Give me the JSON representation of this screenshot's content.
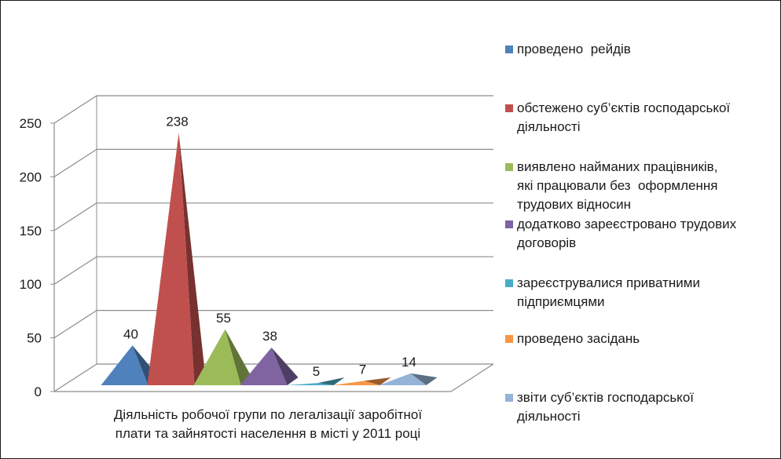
{
  "chart_data": {
    "type": "bar",
    "style": "3d-pyramid",
    "xlabel": "Діяльність робочої групи по легалізації заробітної плати та зайнятості населення в місті у 2011 році",
    "ylim": [
      0,
      250
    ],
    "y_ticks": [
      "0",
      "50",
      "100",
      "150",
      "200",
      "250"
    ],
    "grid": true,
    "legend_position": "right",
    "series": [
      {
        "name": "проведено  рейдів",
        "value": 40,
        "label": "40",
        "color": "#4f81bd"
      },
      {
        "name": "обстежено суб’єктів господарської діяльності",
        "value": 238,
        "label": "238",
        "color": "#c0504d"
      },
      {
        "name": "виявлено найманих працівників, які працювали без  оформлення трудових відносин",
        "value": 55,
        "label": "55",
        "color": "#9bbb59"
      },
      {
        "name": "додатково зареєстровано трудових договорів",
        "value": 38,
        "label": "38",
        "color": "#8064a2"
      },
      {
        "name": "зареєструвалися приватними підприємцями",
        "value": 5,
        "label": "5",
        "color": "#4bacc6"
      },
      {
        "name": "проведено засідань",
        "value": 7,
        "label": "7",
        "color": "#f79646"
      },
      {
        "name": "звіти суб’єктів господарської діяльності",
        "value": 14,
        "label": "14",
        "color": "#95b3d7"
      }
    ]
  },
  "legend": {
    "items": [
      [
        "проведено  рейдів"
      ],
      [
        "обстежено суб’єктів господарської",
        "діяльності"
      ],
      [
        "виявлено найманих працівників,",
        "які працювали без  оформлення",
        "трудових відносин"
      ],
      [
        "додатково зареєстровано трудових",
        "договорів"
      ],
      [
        "зареєструвалися приватними",
        "підприємцями"
      ],
      [
        "проведено засідань"
      ],
      [
        "звіти суб’єктів господарської",
        "діяльності"
      ]
    ]
  },
  "axis_title_lines": [
    "Діяльність робочої групи по легалізації заробітної",
    "плати та зайнятості населення в місті у 2011 році"
  ]
}
